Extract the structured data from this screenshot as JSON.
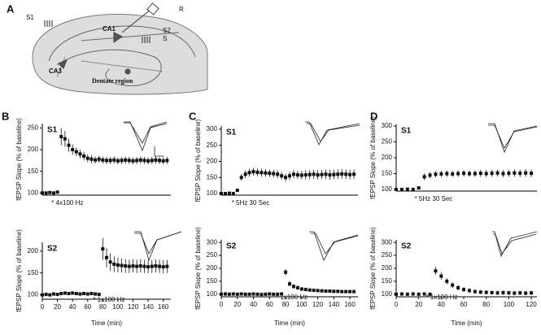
{
  "panel_labels": [
    "A",
    "B",
    "C",
    "D"
  ],
  "diagram": {
    "labels": [
      "S1",
      "R",
      "S2",
      "S",
      "CA1",
      "CA3",
      "Dentate region"
    ]
  },
  "chart_data": [
    {
      "type": "line",
      "title": "S1",
      "annotation": "* 4x100 Hz",
      "ylabel": "fEPSP Slope (% of baseline)",
      "xlim": [
        0,
        170
      ],
      "ylim": [
        95,
        260
      ],
      "yticks": [
        100,
        150,
        200,
        250
      ],
      "x": [
        0,
        5,
        10,
        15,
        20,
        25,
        30,
        35,
        40,
        45,
        50,
        55,
        60,
        65,
        70,
        75,
        80,
        85,
        90,
        95,
        100,
        105,
        110,
        115,
        120,
        125,
        130,
        135,
        140,
        145,
        150,
        155,
        160,
        165
      ],
      "series": [
        {
          "color": "#111",
          "values": [
            100,
            100,
            101,
            100,
            102,
            230,
            225,
            210,
            200,
            195,
            190,
            185,
            180,
            178,
            176,
            178,
            176,
            175,
            175,
            176,
            174,
            175,
            176,
            175,
            174,
            175,
            176,
            175,
            174,
            175,
            176,
            175,
            174,
            175
          ],
          "errors": [
            2,
            2,
            2,
            2,
            2,
            20,
            18,
            15,
            12,
            10,
            10,
            10,
            9,
            9,
            8,
            8,
            8,
            8,
            8,
            8,
            8,
            8,
            8,
            8,
            8,
            8,
            8,
            8,
            8,
            8,
            8,
            8,
            8,
            8
          ]
        }
      ]
    },
    {
      "type": "line",
      "title": "S2",
      "annotation": "* 1x100 Hz",
      "ylabel": "fEPSP Slope (% of baseline)",
      "xlabel": "Time (min)",
      "xlim": [
        0,
        170
      ],
      "ylim": [
        90,
        220
      ],
      "yticks": [
        100,
        150,
        200
      ],
      "xticks": [
        0,
        20,
        40,
        60,
        80,
        100,
        120,
        140,
        160
      ],
      "x": [
        0,
        5,
        10,
        15,
        20,
        25,
        30,
        35,
        40,
        45,
        50,
        55,
        60,
        65,
        70,
        75,
        80,
        85,
        90,
        95,
        100,
        105,
        110,
        115,
        120,
        125,
        130,
        135,
        140,
        145,
        150,
        155,
        160,
        165
      ],
      "series": [
        {
          "color": "#111",
          "values": [
            100,
            101,
            100,
            102,
            101,
            103,
            104,
            103,
            104,
            103,
            102,
            103,
            102,
            103,
            102,
            101,
            205,
            185,
            175,
            170,
            168,
            167,
            166,
            165,
            166,
            165,
            166,
            165,
            164,
            165,
            166,
            165,
            164,
            165
          ],
          "errors": [
            2,
            2,
            2,
            2,
            2,
            2,
            3,
            3,
            3,
            3,
            3,
            3,
            3,
            3,
            3,
            3,
            25,
            22,
            20,
            18,
            17,
            16,
            16,
            15,
            15,
            15,
            15,
            15,
            15,
            15,
            15,
            15,
            15,
            15
          ]
        }
      ]
    },
    {
      "type": "line",
      "title": "S1",
      "annotation": "* 5Hz 30 Sec",
      "ylabel": "fEPSP Slope (% of baseline)",
      "xlim": [
        0,
        170
      ],
      "ylim": [
        95,
        310
      ],
      "yticks": [
        100,
        150,
        200,
        250,
        300
      ],
      "x": [
        0,
        5,
        10,
        15,
        20,
        25,
        30,
        35,
        40,
        45,
        50,
        55,
        60,
        65,
        70,
        75,
        80,
        85,
        90,
        95,
        100,
        105,
        110,
        115,
        120,
        125,
        130,
        135,
        140,
        145,
        150,
        155,
        160,
        165
      ],
      "series": [
        {
          "color": "#111",
          "values": [
            100,
            100,
            101,
            100,
            110,
            150,
            160,
            165,
            168,
            166,
            165,
            164,
            163,
            162,
            160,
            155,
            150,
            155,
            160,
            158,
            157,
            158,
            159,
            160,
            158,
            159,
            160,
            158,
            159,
            160,
            161,
            160,
            159,
            160
          ],
          "errors": [
            2,
            2,
            2,
            2,
            4,
            10,
            12,
            12,
            12,
            12,
            12,
            12,
            12,
            12,
            12,
            12,
            12,
            13,
            13,
            13,
            13,
            14,
            14,
            14,
            14,
            14,
            15,
            15,
            15,
            15,
            15,
            15,
            15,
            15
          ]
        }
      ]
    },
    {
      "type": "line",
      "title": "S2",
      "annotation": "* 1x100 Hz",
      "ylabel": "fEPSP Slope (% of baseline)",
      "xlabel": "Time (min)",
      "xlim": [
        0,
        170
      ],
      "ylim": [
        90,
        310
      ],
      "yticks": [
        100,
        150,
        200,
        250,
        300
      ],
      "xticks": [
        0,
        20,
        40,
        60,
        80,
        100,
        120,
        140,
        160
      ],
      "x": [
        0,
        5,
        10,
        15,
        20,
        25,
        30,
        35,
        40,
        45,
        50,
        55,
        60,
        65,
        70,
        75,
        80,
        85,
        90,
        95,
        100,
        105,
        110,
        115,
        120,
        125,
        130,
        135,
        140,
        145,
        150,
        155,
        160,
        165
      ],
      "series": [
        {
          "color": "#111",
          "values": [
            100,
            101,
            100,
            101,
            100,
            101,
            100,
            100,
            101,
            100,
            99,
            100,
            101,
            100,
            100,
            101,
            185,
            140,
            130,
            125,
            120,
            118,
            116,
            115,
            114,
            113,
            112,
            112,
            111,
            111,
            110,
            110,
            110,
            110
          ],
          "errors": [
            2,
            2,
            2,
            2,
            2,
            2,
            2,
            2,
            2,
            2,
            2,
            2,
            2,
            2,
            2,
            2,
            12,
            10,
            9,
            8,
            7,
            7,
            6,
            6,
            6,
            6,
            6,
            6,
            6,
            6,
            6,
            6,
            6,
            6
          ]
        }
      ]
    },
    {
      "type": "line",
      "title": "S1",
      "annotation": "* 5Hz 30 Sec",
      "ylabel": "fEPSP Slope (% of baseline)",
      "xlim": [
        0,
        125
      ],
      "ylim": [
        95,
        305
      ],
      "yticks": [
        100,
        150,
        200,
        250,
        300
      ],
      "x": [
        0,
        5,
        10,
        15,
        20,
        25,
        30,
        35,
        40,
        45,
        50,
        55,
        60,
        65,
        70,
        75,
        80,
        85,
        90,
        95,
        100,
        105,
        110,
        115,
        120
      ],
      "series": [
        {
          "color": "#111",
          "values": [
            100,
            100,
            101,
            100,
            105,
            140,
            145,
            148,
            149,
            150,
            149,
            150,
            151,
            150,
            150,
            151,
            150,
            151,
            152,
            150,
            151,
            152,
            151,
            152,
            151
          ],
          "errors": [
            2,
            2,
            2,
            2,
            3,
            10,
            10,
            10,
            10,
            10,
            10,
            10,
            10,
            10,
            10,
            11,
            11,
            11,
            11,
            11,
            11,
            12,
            12,
            12,
            12
          ]
        }
      ]
    },
    {
      "type": "line",
      "title": "S2",
      "annotation": "* 1x100 Hz",
      "ylabel": "fEPSP Slope (% of baseline)",
      "xlabel": "Time (min)",
      "xlim": [
        0,
        125
      ],
      "ylim": [
        90,
        310
      ],
      "yticks": [
        100,
        150,
        200,
        250,
        300
      ],
      "xticks": [
        0,
        20,
        40,
        60,
        80,
        100,
        120
      ],
      "x": [
        0,
        5,
        10,
        15,
        20,
        25,
        30,
        35,
        40,
        45,
        50,
        55,
        60,
        65,
        70,
        75,
        80,
        85,
        90,
        95,
        100,
        105,
        110,
        115,
        120
      ],
      "series": [
        {
          "color": "#111",
          "values": [
            100,
            101,
            100,
            101,
            100,
            101,
            100,
            190,
            170,
            150,
            135,
            125,
            118,
            114,
            110,
            108,
            107,
            106,
            105,
            106,
            105,
            104,
            105,
            104,
            105
          ],
          "errors": [
            2,
            2,
            2,
            2,
            2,
            2,
            2,
            15,
            14,
            12,
            11,
            10,
            9,
            9,
            8,
            8,
            8,
            8,
            8,
            8,
            8,
            8,
            8,
            8,
            8
          ]
        }
      ]
    }
  ]
}
